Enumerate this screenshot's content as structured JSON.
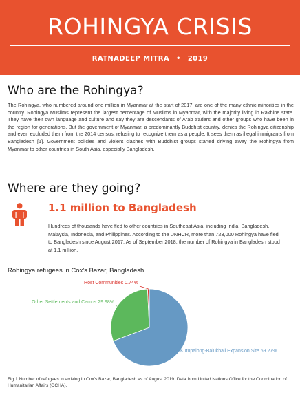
{
  "header": {
    "title": "ROHINGYA CRISIS",
    "author": "RATNADEEP MITRA",
    "separator": "•",
    "year": "2019",
    "color": "#e8522f"
  },
  "section1": {
    "heading": "Who are the Rohingya?",
    "body": "The Rohingya, who numbered around one million in Myanmar at the start of 2017, are one of the many ethnic minorities in the country. Rohingya Muslims represent the largest percentage of Muslims in Myanmar, with the majority living in Rakhine state. They have their own language and culture and say they are descendants of Arab traders and other groups who have been in the region for generations. But the government of Myanmar, a predominantly Buddhist country, denies the Rohingya citizenship and even excluded them from the 2014 census, refusing to recognize them as a people. It sees them as illegal immigrants from Bangladesh [1]. Government policies and violent clashes with Buddhist groups started driving away the Rohingya from Myanmar to other countries in South Asia, especially Bangladesh."
  },
  "section2": {
    "heading": "Where are they going?",
    "icon": "person-icon",
    "headline": "1.1 million to Bangladesh",
    "body": "Hundreds of thousands have fled to other countries in Southeast Asia, including India, Bangladesh, Malaysia, Indonesia, and Philippines. According to the UNHCR, more than 723,000 Rohingya have fled to Bangladesh since August 2017. As of  September 2018, the number of Rohingya in Bangladesh stood at 1.1 million."
  },
  "chart_data": {
    "type": "pie",
    "title": "Rohingya refugees in Cox's Bazar, Bangladesh",
    "slices": [
      {
        "label": "Kutupalong-Balukhali Expansion Site 69.27%",
        "value": 69.27,
        "color": "#6699c4"
      },
      {
        "label": "Other Settlements and Camps 29.98%",
        "value": 29.98,
        "color": "#5cb85c"
      },
      {
        "label": "Host Communities 0.74%",
        "value": 0.74,
        "color": "#d9312b"
      }
    ],
    "legend": "none"
  },
  "caption": "Fig.1 Number of refugees in arriving in Cox's Bazar, Bangladesh as of August 2019. Data from United Nations Office for the Coordination of Humanitarian Affairs (OCHA)."
}
